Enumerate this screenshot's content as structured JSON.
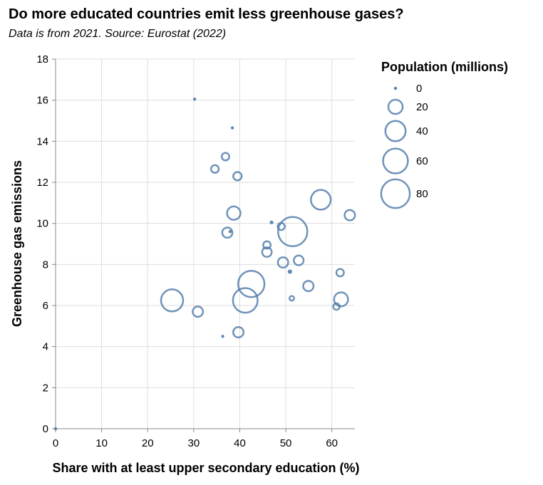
{
  "title": "Do more educated countries emit less greenhouse gases?",
  "subtitle": "Data is from 2021. Source: Eurostat (2022)",
  "chart_data": {
    "type": "scatter",
    "xlabel": "Share with at least upper secondary education (%)",
    "ylabel": "Greenhouse gas emissions",
    "xlim": [
      0,
      65
    ],
    "ylim": [
      0,
      18
    ],
    "x_ticks": [
      0,
      10,
      20,
      30,
      40,
      50,
      60
    ],
    "y_ticks": [
      0,
      2,
      4,
      6,
      8,
      10,
      12,
      14,
      16,
      18
    ],
    "grid": true,
    "size_legend": {
      "title": "Population (millions)",
      "values": [
        0,
        20,
        40,
        60,
        80
      ]
    },
    "color": "#4c78a8",
    "points": [
      {
        "x": 0,
        "y": 0,
        "size": 0
      },
      {
        "x": 30.2,
        "y": 16.05,
        "size": 0.6
      },
      {
        "x": 38.4,
        "y": 14.65,
        "size": 0.5
      },
      {
        "x": 36.9,
        "y": 13.25,
        "size": 5.5
      },
      {
        "x": 34.6,
        "y": 12.65,
        "size": 5.8
      },
      {
        "x": 39.5,
        "y": 12.3,
        "size": 6.9
      },
      {
        "x": 57.6,
        "y": 11.15,
        "size": 38.0
      },
      {
        "x": 63.9,
        "y": 10.4,
        "size": 10.5
      },
      {
        "x": 38.7,
        "y": 10.5,
        "size": 17.5
      },
      {
        "x": 46.9,
        "y": 10.05,
        "size": 0.9
      },
      {
        "x": 49.0,
        "y": 9.85,
        "size": 4.9
      },
      {
        "x": 51.5,
        "y": 9.6,
        "size": 83.2
      },
      {
        "x": 37.3,
        "y": 9.55,
        "size": 10.1
      },
      {
        "x": 37.9,
        "y": 9.6,
        "size": 0.5
      },
      {
        "x": 45.9,
        "y": 8.95,
        "size": 5.4
      },
      {
        "x": 45.9,
        "y": 8.6,
        "size": 8.9
      },
      {
        "x": 49.4,
        "y": 8.1,
        "size": 10.4
      },
      {
        "x": 52.8,
        "y": 8.2,
        "size": 9.3
      },
      {
        "x": 50.9,
        "y": 7.65,
        "size": 1.3
      },
      {
        "x": 61.8,
        "y": 7.6,
        "size": 5.5
      },
      {
        "x": 42.5,
        "y": 7.05,
        "size": 67.5
      },
      {
        "x": 54.9,
        "y": 6.95,
        "size": 10.4
      },
      {
        "x": 25.3,
        "y": 6.25,
        "size": 47.4
      },
      {
        "x": 41.2,
        "y": 6.25,
        "size": 59.2
      },
      {
        "x": 51.3,
        "y": 6.35,
        "size": 2.1
      },
      {
        "x": 62.0,
        "y": 6.3,
        "size": 19.0
      },
      {
        "x": 61.0,
        "y": 5.95,
        "size": 4.1
      },
      {
        "x": 30.9,
        "y": 5.7,
        "size": 10.3
      },
      {
        "x": 36.3,
        "y": 4.5,
        "size": 0.5
      },
      {
        "x": 39.7,
        "y": 4.7,
        "size": 10.5
      }
    ]
  }
}
